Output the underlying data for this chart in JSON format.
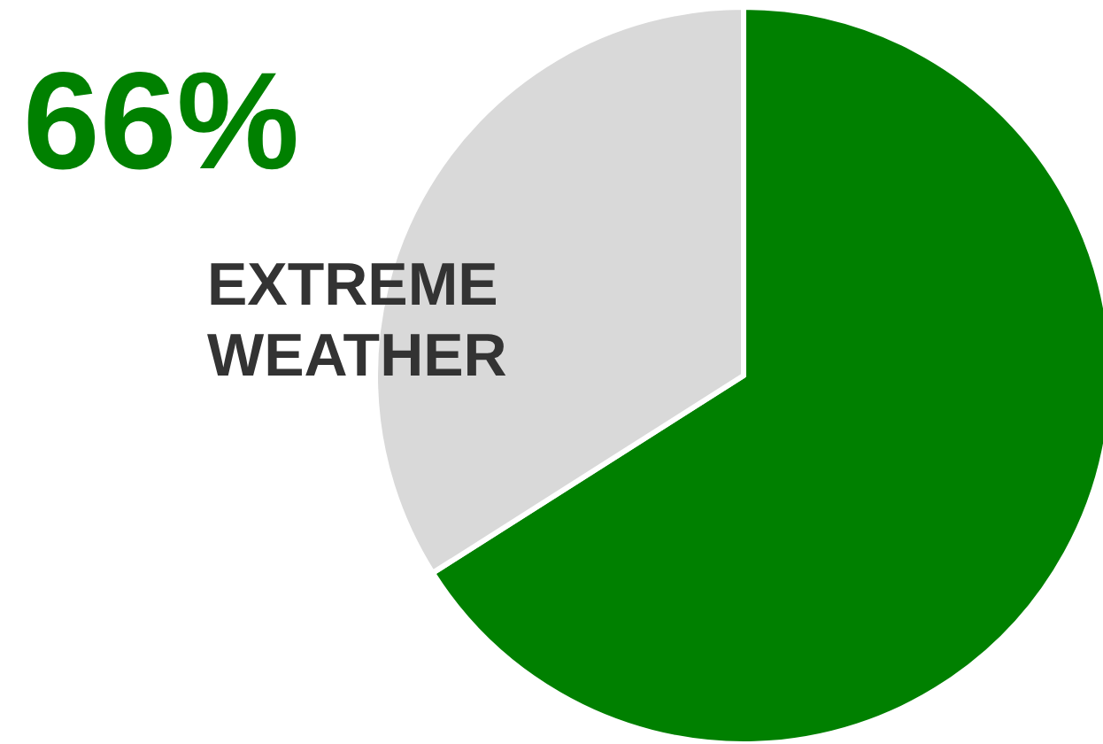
{
  "chart_data": {
    "type": "pie",
    "title": "66%",
    "subtitle": "EXTREME WEATHER",
    "categories": [
      null,
      null
    ],
    "values": [
      66,
      34
    ],
    "colors": [
      "#008000",
      "#d9d9d9"
    ]
  }
}
